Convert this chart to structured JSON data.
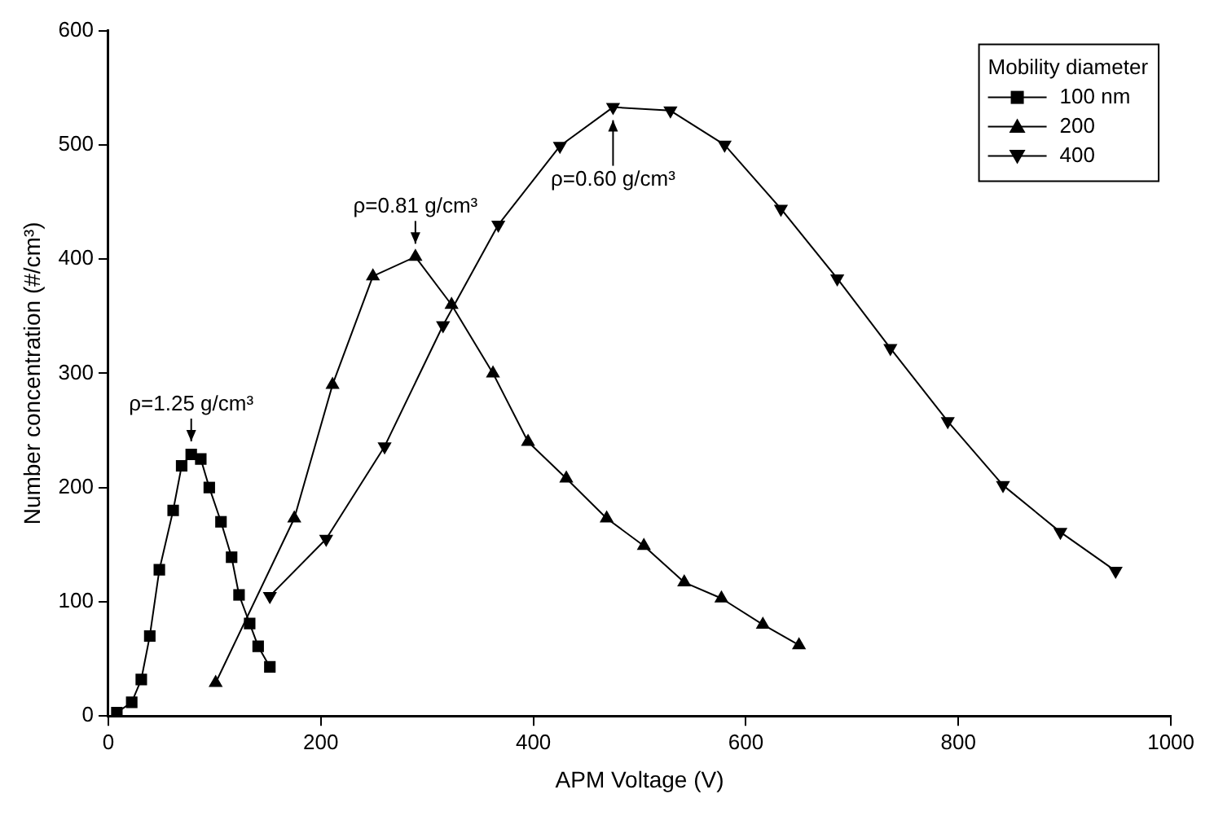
{
  "chart_data": {
    "type": "line",
    "xlabel": "APM Voltage (V)",
    "ylabel": "Number concentration (#/cm³)",
    "legend_title": "Mobility diameter",
    "xlim": [
      0,
      1000
    ],
    "xticks": [
      0,
      200,
      400,
      600,
      800,
      1000
    ],
    "ylim": [
      0,
      600
    ],
    "yticks": [
      0,
      100,
      200,
      300,
      400,
      500,
      600
    ],
    "grid": false,
    "legend": "top right",
    "line_style": "solid",
    "series": [
      {
        "name": "100 nm",
        "color": "#000000",
        "marker": "square",
        "x": [
          8,
          22,
          31,
          39,
          48,
          61,
          69,
          78,
          87,
          95,
          106,
          116,
          123,
          133,
          141,
          152
        ],
        "values": [
          3,
          12,
          32,
          70,
          128,
          180,
          219,
          229,
          225,
          200,
          170,
          139,
          106,
          81,
          61,
          43
        ]
      },
      {
        "name": "200",
        "color": "#000000",
        "marker": "triangle",
        "x": [
          101,
          175,
          211,
          249,
          289,
          323,
          362,
          395,
          431,
          469,
          504,
          542,
          577,
          616,
          650
        ],
        "values": [
          29,
          173,
          290,
          385,
          402,
          360,
          300,
          240,
          208,
          173,
          149,
          117,
          103,
          80,
          62
        ]
      },
      {
        "name": "400",
        "color": "#000000",
        "marker": "triangle-down",
        "x": [
          152,
          205,
          260,
          315,
          367,
          425,
          475,
          529,
          580,
          633,
          686,
          736,
          790,
          842,
          896,
          948
        ],
        "values": [
          105,
          155,
          236,
          342,
          430,
          499,
          533,
          530,
          500,
          444,
          383,
          322,
          258,
          202,
          161,
          127
        ]
      }
    ],
    "annotations": [
      {
        "text": "ρ=1.25 g/cm³",
        "x": 78,
        "y": 229
      },
      {
        "text": "ρ=0.81 g/cm³",
        "x": 289,
        "y": 402
      },
      {
        "text": "ρ=0.60 g/cm³",
        "x": 475,
        "y": 533
      }
    ]
  }
}
